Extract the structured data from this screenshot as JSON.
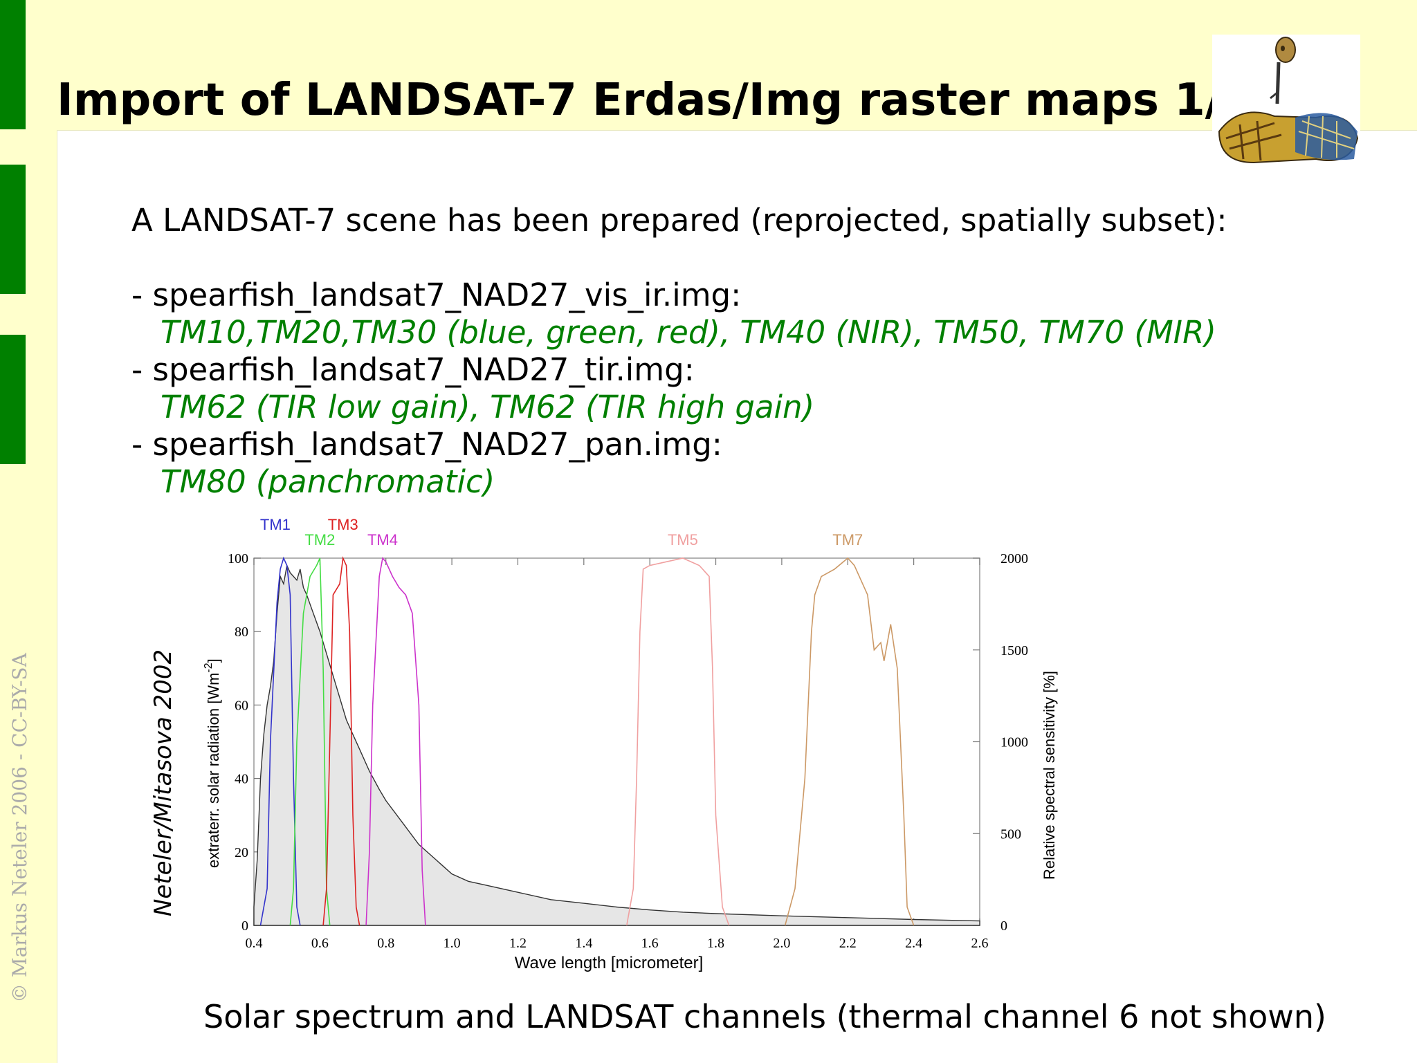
{
  "slide": {
    "title": "Import of LANDSAT-7 Erdas/Img raster maps 1/2",
    "copyright": "© Markus Neteler 2006 - CC-BY-SA",
    "intro": "A LANDSAT-7 scene has been prepared (reprojected, spatially subset):",
    "files": [
      {
        "name": "- spearfish_landsat7_NAD27_vis_ir.img:",
        "bands": "TM10,TM20,TM30 (blue, green, red), TM40 (NIR), TM50, TM70 (MIR)"
      },
      {
        "name": "- spearfish_landsat7_NAD27_tir.img:",
        "bands": "TM62 (TIR low gain), TM62 (TIR high gain)"
      },
      {
        "name": "- spearfish_landsat7_NAD27_pan.img:",
        "bands": "TM80 (panchromatic)"
      }
    ],
    "credit": "Neteler/Mitasova 2002",
    "caption": "Solar spectrum and LANDSAT channels (thermal channel 6 not shown)",
    "colors": {
      "accent_green": "#008000",
      "background": "#ffffcc"
    }
  },
  "chart_data": {
    "type": "area",
    "xlabel": "Wave length [micrometer]",
    "ylabel": "extraterr. solar radiation [Wm^-2]",
    "ylabel_main": "extraterr. solar radiation [Wm",
    "ylabel_sup": "-2",
    "ylabel_close": "]",
    "y2label": "Relative spectral sensitivity [%]",
    "xlim": [
      0.4,
      2.6
    ],
    "ylim": [
      0,
      100
    ],
    "y2lim": [
      0,
      2000
    ],
    "x_ticks": [
      "0.4",
      "0.6",
      "0.8",
      "1.0",
      "1.2",
      "1.4",
      "1.6",
      "1.8",
      "2.0",
      "2.2",
      "2.4",
      "2.6"
    ],
    "y_ticks": [
      "0",
      "20",
      "40",
      "60",
      "80",
      "100"
    ],
    "y2_ticks": [
      "0",
      "500",
      "1000",
      "1500",
      "2000"
    ],
    "grid": false,
    "solar_spectrum": {
      "x": [
        0.4,
        0.41,
        0.42,
        0.43,
        0.44,
        0.45,
        0.46,
        0.47,
        0.48,
        0.49,
        0.5,
        0.51,
        0.52,
        0.53,
        0.54,
        0.55,
        0.56,
        0.58,
        0.6,
        0.62,
        0.64,
        0.66,
        0.68,
        0.7,
        0.72,
        0.75,
        0.78,
        0.8,
        0.85,
        0.9,
        0.95,
        1.0,
        1.05,
        1.1,
        1.2,
        1.3,
        1.4,
        1.5,
        1.6,
        1.7,
        1.8,
        2.0,
        2.2,
        2.4,
        2.6
      ],
      "y": [
        5,
        18,
        40,
        52,
        60,
        65,
        72,
        85,
        95,
        93,
        98,
        96,
        95,
        94,
        97,
        92,
        90,
        85,
        80,
        74,
        68,
        62,
        56,
        52,
        48,
        42,
        37,
        34,
        28,
        22,
        18,
        14,
        12,
        11,
        9,
        7,
        6,
        5,
        4.2,
        3.6,
        3.2,
        2.6,
        2.1,
        1.6,
        1.2
      ]
    },
    "bands": [
      {
        "name": "TM1",
        "color": "#3333cc",
        "x": [
          0.42,
          0.44,
          0.45,
          0.47,
          0.48,
          0.49,
          0.5,
          0.51,
          0.52,
          0.53,
          0.54
        ],
        "y": [
          0,
          10,
          50,
          88,
          97,
          100,
          98,
          90,
          40,
          5,
          0
        ]
      },
      {
        "name": "TM2",
        "color": "#44dd44",
        "x": [
          0.51,
          0.52,
          0.53,
          0.55,
          0.57,
          0.59,
          0.6,
          0.61,
          0.62,
          0.63
        ],
        "y": [
          0,
          10,
          50,
          85,
          95,
          98,
          100,
          70,
          10,
          0
        ]
      },
      {
        "name": "TM3",
        "color": "#dd2222",
        "x": [
          0.61,
          0.62,
          0.63,
          0.64,
          0.66,
          0.67,
          0.68,
          0.69,
          0.7,
          0.71,
          0.72
        ],
        "y": [
          0,
          10,
          50,
          90,
          93,
          100,
          98,
          80,
          30,
          5,
          0
        ]
      },
      {
        "name": "TM4",
        "color": "#cc33cc",
        "x": [
          0.74,
          0.75,
          0.76,
          0.78,
          0.79,
          0.8,
          0.82,
          0.84,
          0.86,
          0.88,
          0.9,
          0.91,
          0.92
        ],
        "y": [
          0,
          20,
          60,
          95,
          100,
          99,
          95,
          92,
          90,
          85,
          60,
          15,
          0
        ]
      },
      {
        "name": "TM5",
        "color": "#f0a0a0",
        "x": [
          1.53,
          1.55,
          1.56,
          1.57,
          1.58,
          1.6,
          1.65,
          1.7,
          1.75,
          1.78,
          1.79,
          1.8,
          1.82,
          1.84
        ],
        "y": [
          0,
          10,
          40,
          80,
          97,
          98,
          99,
          100,
          98,
          95,
          70,
          30,
          5,
          0
        ]
      },
      {
        "name": "TM7",
        "color": "#cc9966",
        "x": [
          2.01,
          2.04,
          2.07,
          2.09,
          2.1,
          2.12,
          2.16,
          2.2,
          2.22,
          2.26,
          2.28,
          2.3,
          2.31,
          2.33,
          2.35,
          2.37,
          2.38,
          2.4
        ],
        "y": [
          0,
          10,
          40,
          80,
          90,
          95,
          97,
          100,
          98,
          90,
          75,
          77,
          72,
          82,
          70,
          30,
          5,
          0
        ]
      }
    ]
  }
}
